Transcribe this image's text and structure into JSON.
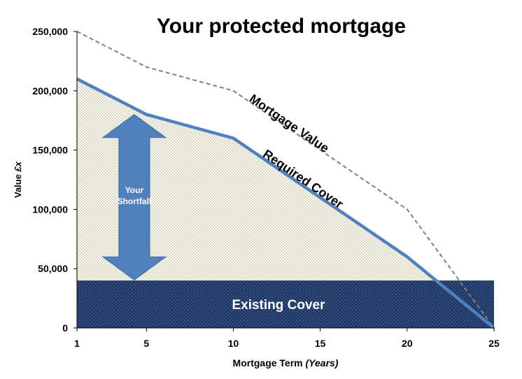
{
  "chart_data": {
    "type": "area",
    "title": "Your protected mortgage",
    "xlabel_main": "Mortgage Term ",
    "xlabel_units": "(Years)",
    "ylabel_main": "Value ",
    "ylabel_units": "£x",
    "xlim": [
      1,
      25
    ],
    "ylim": [
      0,
      250000
    ],
    "x_ticks": [
      1,
      5,
      10,
      15,
      20,
      25
    ],
    "y_ticks": [
      0,
      50000,
      100000,
      150000,
      200000,
      250000
    ],
    "y_tick_labels": [
      "0",
      "50,000",
      "100,000",
      "150,000",
      "200,000",
      "250,000"
    ],
    "series": [
      {
        "name": "Mortgage Value",
        "x": [
          1,
          5,
          10,
          20,
          25
        ],
        "y": [
          250000,
          220000,
          200000,
          100000,
          0
        ],
        "color": "#808080",
        "style": "dashed"
      },
      {
        "name": "Required Cover",
        "x": [
          1,
          5,
          10,
          20,
          25
        ],
        "y": [
          210000,
          180000,
          160000,
          60000,
          0
        ],
        "color": "#4f81bd",
        "style": "solid"
      }
    ],
    "existing_cover": {
      "label": "Existing Cover",
      "value": 40000,
      "color": "#1f3864"
    },
    "shortfall_arrow": {
      "label_line1": "Your",
      "label_line2": "Shortfall",
      "x": 4.5,
      "from": 44000,
      "to": 180000,
      "color": "#4f81bd"
    },
    "fill_color": "#e8e6c8"
  }
}
